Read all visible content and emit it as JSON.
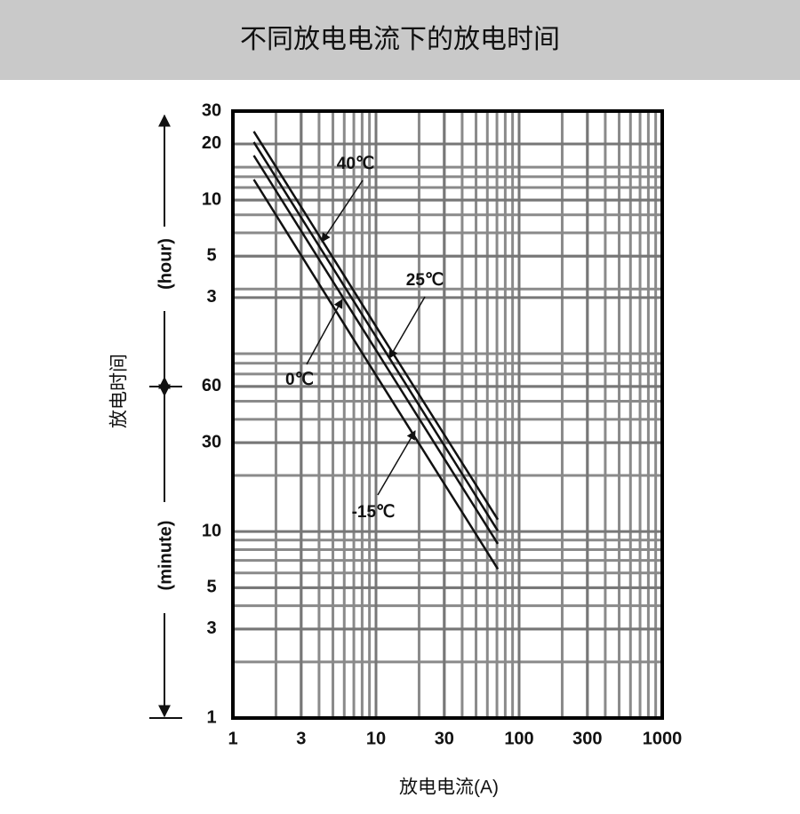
{
  "chart_data": {
    "type": "line",
    "title": "不同放电电流下的放电时间",
    "x_label": "放电电流(A)",
    "y_label": "放电时间",
    "y_unit_upper": "(hour)",
    "y_unit_lower": "(minute)",
    "x_scale": "log",
    "y_scale": "log",
    "grid": true,
    "minor_grid": true,
    "xlim": [
      1,
      1000
    ],
    "xticks": [
      1,
      3,
      10,
      30,
      100,
      300,
      1000
    ],
    "ylim": [
      1,
      1800
    ],
    "yticks": [
      1,
      3,
      5,
      10,
      30,
      60,
      {
        "value": 180,
        "label": "3"
      },
      {
        "value": 300,
        "label": "5"
      },
      {
        "value": 600,
        "label": "10"
      },
      {
        "value": 1200,
        "label": "20"
      },
      {
        "value": 1800,
        "label": "30"
      }
    ],
    "x": [
      1.4,
      10,
      71
    ],
    "series": [
      {
        "name": "40℃",
        "color": "#111111",
        "values": [
          1400,
          126,
          11.6
        ]
      },
      {
        "name": "25℃",
        "color": "#111111",
        "values": [
          1227,
          111,
          10.1
        ]
      },
      {
        "name": "0℃",
        "color": "#111111",
        "values": [
          1040,
          94,
          8.6
        ]
      },
      {
        "name": "-15℃",
        "color": "#111111",
        "values": [
          773,
          69,
          6.3
        ]
      }
    ]
  }
}
